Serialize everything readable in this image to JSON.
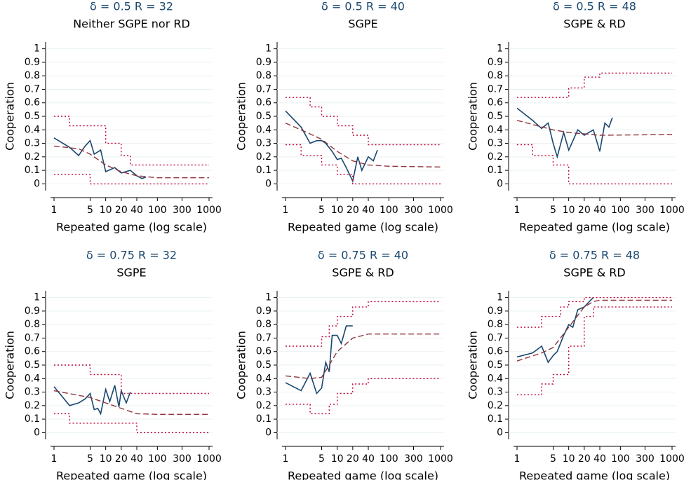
{
  "chart_data": [
    {
      "type": "line",
      "title": "δ = 0.5 R = 32",
      "subtitle": "Neither SGPE nor RD",
      "ylabel": "Cooperation",
      "xlabel": "Repeated game (log scale)",
      "log_x": true,
      "xlim": [
        1,
        1000
      ],
      "ylim": [
        -0.05,
        1.05
      ],
      "xticks": [
        1,
        5,
        10,
        20,
        40,
        100,
        300,
        1000
      ],
      "yticks": [
        0,
        0.1,
        0.2,
        0.3,
        0.4,
        0.5,
        0.6,
        0.7,
        0.8,
        0.9,
        1
      ],
      "series": [
        {
          "color": "#1a476f",
          "style": "solid",
          "x": [
            1,
            2,
            3,
            4,
            5,
            6,
            8,
            10,
            15,
            20,
            30,
            40,
            50,
            60
          ],
          "values": [
            0.34,
            0.27,
            0.21,
            0.28,
            0.32,
            0.22,
            0.25,
            0.09,
            0.12,
            0.08,
            0.1,
            0.06,
            0.04,
            0.05
          ]
        },
        {
          "color": "#90353b",
          "style": "dashed",
          "x": [
            1,
            3,
            5,
            10,
            20,
            40,
            100,
            1000
          ],
          "values": [
            0.28,
            0.26,
            0.22,
            0.14,
            0.09,
            0.06,
            0.045,
            0.045
          ]
        },
        {
          "color": "#c10534",
          "style": "dotted",
          "x": [
            1,
            2,
            2,
            10,
            10,
            20,
            20,
            30,
            30,
            1000
          ],
          "values": [
            0.5,
            0.5,
            0.43,
            0.43,
            0.3,
            0.3,
            0.21,
            0.21,
            0.14,
            0.14
          ]
        },
        {
          "color": "#c10534",
          "style": "dotted",
          "x": [
            1,
            5,
            5,
            1000
          ],
          "values": [
            0.07,
            0.07,
            0,
            0
          ]
        }
      ]
    },
    {
      "type": "line",
      "title": "δ = 0.5 R = 40",
      "subtitle": "SGPE",
      "ylabel": "Cooperation",
      "xlabel": "Repeated game (log scale)",
      "log_x": true,
      "xlim": [
        1,
        1000
      ],
      "ylim": [
        -0.05,
        1.05
      ],
      "xticks": [
        1,
        5,
        10,
        20,
        40,
        100,
        300,
        1000
      ],
      "yticks": [
        0,
        0.1,
        0.2,
        0.3,
        0.4,
        0.5,
        0.6,
        0.7,
        0.8,
        0.9,
        1
      ],
      "series": [
        {
          "color": "#1a476f",
          "style": "solid",
          "x": [
            1,
            2,
            3,
            4,
            5,
            6,
            8,
            10,
            12,
            15,
            20,
            25,
            30,
            40,
            50,
            60
          ],
          "values": [
            0.54,
            0.42,
            0.3,
            0.32,
            0.32,
            0.3,
            0.24,
            0.18,
            0.19,
            0.12,
            0.02,
            0.2,
            0.1,
            0.2,
            0.17,
            0.25
          ]
        },
        {
          "color": "#90353b",
          "style": "dashed",
          "x": [
            1,
            3,
            5,
            10,
            20,
            40,
            100,
            1000
          ],
          "values": [
            0.45,
            0.37,
            0.33,
            0.24,
            0.17,
            0.14,
            0.13,
            0.125
          ]
        },
        {
          "color": "#c10534",
          "style": "dotted",
          "x": [
            1,
            3,
            3,
            5,
            5,
            10,
            10,
            20,
            20,
            40,
            40,
            1000
          ],
          "values": [
            0.64,
            0.64,
            0.57,
            0.57,
            0.5,
            0.5,
            0.43,
            0.43,
            0.36,
            0.36,
            0.29,
            0.29
          ]
        },
        {
          "color": "#c10534",
          "style": "dotted",
          "x": [
            1,
            2,
            2,
            5,
            5,
            10,
            10,
            20,
            20,
            1000
          ],
          "values": [
            0.29,
            0.29,
            0.21,
            0.21,
            0.14,
            0.14,
            0.07,
            0.07,
            0,
            0
          ]
        }
      ]
    },
    {
      "type": "line",
      "title": "δ = 0.5 R = 48",
      "subtitle": "SGPE & RD",
      "ylabel": "Cooperation",
      "xlabel": "Repeated game (log scale)",
      "log_x": true,
      "xlim": [
        1,
        1000
      ],
      "ylim": [
        -0.05,
        1.05
      ],
      "xticks": [
        1,
        5,
        10,
        20,
        40,
        100,
        300,
        1000
      ],
      "yticks": [
        0,
        0.1,
        0.2,
        0.3,
        0.4,
        0.5,
        0.6,
        0.7,
        0.8,
        0.9,
        1
      ],
      "series": [
        {
          "color": "#1a476f",
          "style": "solid",
          "x": [
            1,
            2,
            3,
            4,
            5,
            6,
            8,
            10,
            15,
            20,
            30,
            40,
            50,
            60,
            70
          ],
          "values": [
            0.56,
            0.47,
            0.41,
            0.45,
            0.3,
            0.2,
            0.38,
            0.25,
            0.4,
            0.36,
            0.4,
            0.24,
            0.45,
            0.42,
            0.49
          ]
        },
        {
          "color": "#90353b",
          "style": "dashed",
          "x": [
            1,
            5,
            10,
            40,
            1000
          ],
          "values": [
            0.47,
            0.4,
            0.38,
            0.36,
            0.365
          ]
        },
        {
          "color": "#c10534",
          "style": "dotted",
          "x": [
            1,
            10,
            10,
            20,
            20,
            40,
            40,
            1000
          ],
          "values": [
            0.64,
            0.64,
            0.71,
            0.71,
            0.79,
            0.79,
            0.82,
            0.82
          ]
        },
        {
          "color": "#c10534",
          "style": "dotted",
          "x": [
            1,
            2,
            2,
            5,
            5,
            10,
            10,
            1000
          ],
          "values": [
            0.29,
            0.29,
            0.21,
            0.21,
            0.14,
            0.14,
            0,
            0
          ]
        }
      ]
    },
    {
      "type": "line",
      "title": "δ = 0.75 R = 32",
      "subtitle": "SGPE",
      "ylabel": "Cooperation",
      "xlabel": "Repeated game (log scale)",
      "log_x": true,
      "xlim": [
        1,
        1000
      ],
      "ylim": [
        -0.05,
        1.05
      ],
      "xticks": [
        1,
        5,
        10,
        20,
        40,
        100,
        300,
        1000
      ],
      "yticks": [
        0,
        0.1,
        0.2,
        0.3,
        0.4,
        0.5,
        0.6,
        0.7,
        0.8,
        0.9,
        1
      ],
      "series": [
        {
          "color": "#1a476f",
          "style": "solid",
          "x": [
            1,
            2,
            3,
            4,
            5,
            6,
            7,
            8,
            10,
            12,
            15,
            18,
            20,
            25,
            30
          ],
          "values": [
            0.34,
            0.2,
            0.22,
            0.25,
            0.29,
            0.17,
            0.18,
            0.14,
            0.32,
            0.23,
            0.35,
            0.19,
            0.31,
            0.22,
            0.3
          ]
        },
        {
          "color": "#90353b",
          "style": "dashed",
          "x": [
            1,
            5,
            10,
            40,
            100,
            1000
          ],
          "values": [
            0.31,
            0.26,
            0.22,
            0.14,
            0.135,
            0.135
          ]
        },
        {
          "color": "#c10534",
          "style": "dotted",
          "x": [
            1,
            5,
            5,
            20,
            20,
            1000
          ],
          "values": [
            0.5,
            0.5,
            0.43,
            0.43,
            0.29,
            0.29
          ]
        },
        {
          "color": "#c10534",
          "style": "dotted",
          "x": [
            1,
            2,
            2,
            40,
            40,
            1000
          ],
          "values": [
            0.14,
            0.14,
            0.07,
            0.07,
            0,
            0
          ]
        }
      ]
    },
    {
      "type": "line",
      "title": "δ = 0.75 R = 40",
      "subtitle": "SGPE & RD",
      "ylabel": "Cooperation",
      "xlabel": "Repeated game (log scale)",
      "log_x": true,
      "xlim": [
        1,
        1000
      ],
      "ylim": [
        -0.05,
        1.05
      ],
      "xticks": [
        1,
        5,
        10,
        20,
        40,
        100,
        300,
        1000
      ],
      "yticks": [
        0,
        0.1,
        0.2,
        0.3,
        0.4,
        0.5,
        0.6,
        0.7,
        0.8,
        0.9,
        1
      ],
      "series": [
        {
          "color": "#1a476f",
          "style": "solid",
          "x": [
            1,
            2,
            3,
            4,
            5,
            6,
            7,
            8,
            10,
            12,
            15,
            20
          ],
          "values": [
            0.37,
            0.31,
            0.44,
            0.29,
            0.33,
            0.52,
            0.45,
            0.72,
            0.72,
            0.66,
            0.79,
            0.79
          ]
        },
        {
          "color": "#90353b",
          "style": "dashed",
          "x": [
            1,
            3,
            5,
            7,
            10,
            20,
            40,
            100,
            1000
          ],
          "values": [
            0.42,
            0.4,
            0.41,
            0.5,
            0.6,
            0.7,
            0.73,
            0.73,
            0.73
          ]
        },
        {
          "color": "#c10534",
          "style": "dotted",
          "x": [
            1,
            5,
            5,
            7,
            7,
            10,
            10,
            20,
            20,
            40,
            40,
            1000
          ],
          "values": [
            0.64,
            0.64,
            0.71,
            0.71,
            0.79,
            0.79,
            0.86,
            0.86,
            0.93,
            0.93,
            0.97,
            0.97
          ]
        },
        {
          "color": "#c10534",
          "style": "dotted",
          "x": [
            1,
            3,
            3,
            7,
            7,
            10,
            10,
            20,
            20,
            40,
            40,
            1000
          ],
          "values": [
            0.21,
            0.21,
            0.14,
            0.14,
            0.21,
            0.21,
            0.29,
            0.29,
            0.36,
            0.36,
            0.4,
            0.4
          ]
        }
      ]
    },
    {
      "type": "line",
      "title": "δ = 0.75 R = 48",
      "subtitle": "SGPE & RD",
      "ylabel": "Cooperation",
      "xlabel": "Repeated game (log scale)",
      "log_x": true,
      "xlim": [
        1,
        1000
      ],
      "ylim": [
        -0.05,
        1.05
      ],
      "xticks": [
        1,
        5,
        10,
        20,
        40,
        100,
        300,
        1000
      ],
      "yticks": [
        0,
        0.1,
        0.2,
        0.3,
        0.4,
        0.5,
        0.6,
        0.7,
        0.8,
        0.9,
        1
      ],
      "series": [
        {
          "color": "#1a476f",
          "style": "solid",
          "x": [
            1,
            2,
            3,
            4,
            5,
            6,
            8,
            10,
            12,
            15,
            20,
            25,
            30
          ],
          "values": [
            0.56,
            0.59,
            0.64,
            0.52,
            0.57,
            0.6,
            0.72,
            0.8,
            0.78,
            0.91,
            0.93,
            0.97,
            1
          ]
        },
        {
          "color": "#90353b",
          "style": "dashed",
          "x": [
            1,
            3,
            5,
            10,
            20,
            30,
            40,
            100,
            1000
          ],
          "values": [
            0.53,
            0.59,
            0.63,
            0.78,
            0.93,
            0.97,
            0.98,
            0.98,
            0.98
          ]
        },
        {
          "color": "#c10534",
          "style": "dotted",
          "x": [
            1,
            3,
            3,
            7,
            7,
            10,
            10,
            20,
            20,
            1000
          ],
          "values": [
            0.78,
            0.78,
            0.86,
            0.86,
            0.93,
            0.93,
            0.97,
            0.97,
            1,
            1
          ]
        },
        {
          "color": "#c10534",
          "style": "dotted",
          "x": [
            1,
            3,
            3,
            5,
            5,
            10,
            10,
            20,
            20,
            30,
            30,
            1000
          ],
          "values": [
            0.28,
            0.28,
            0.36,
            0.36,
            0.43,
            0.43,
            0.64,
            0.64,
            0.86,
            0.86,
            0.93,
            0.93
          ]
        }
      ]
    }
  ]
}
